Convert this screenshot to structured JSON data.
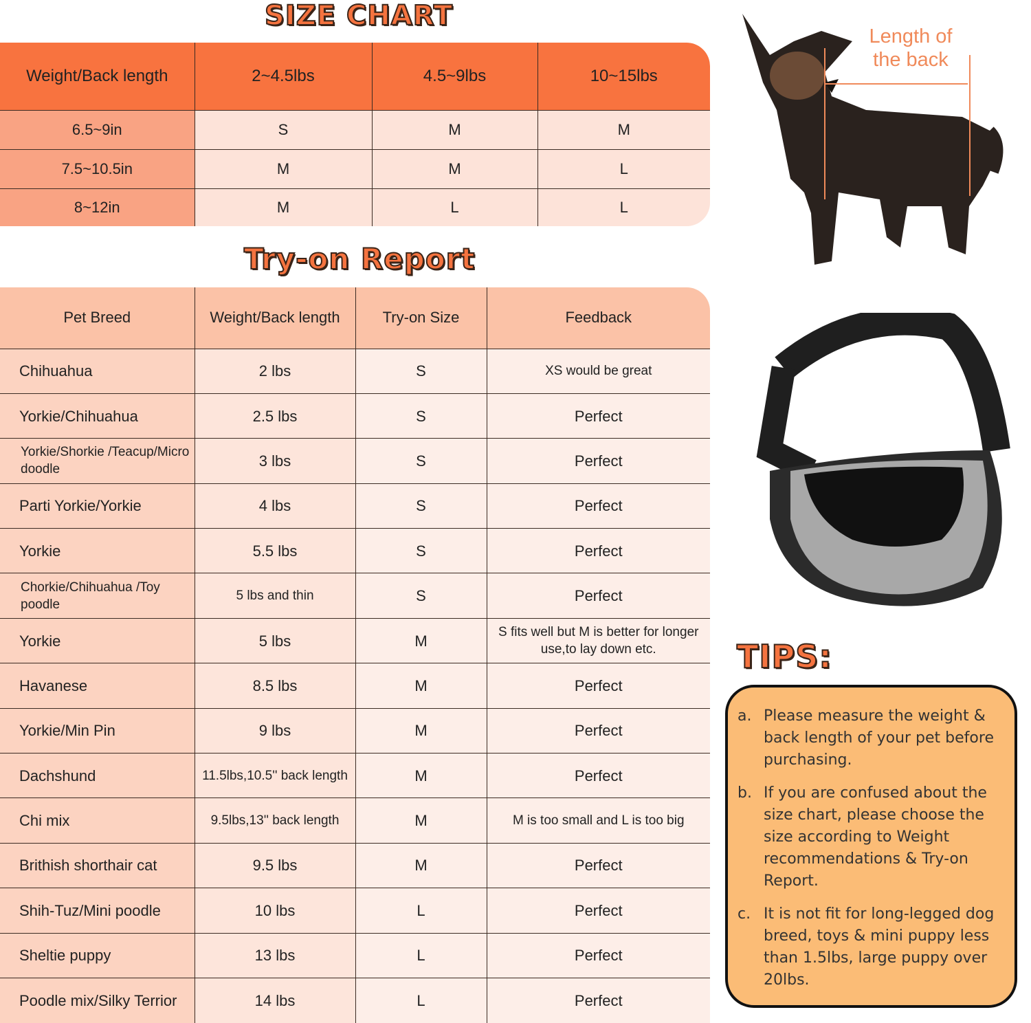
{
  "size_chart": {
    "title": "SIZE CHART",
    "headers": [
      "Weight/Back length",
      "2~4.5lbs",
      "4.5~9lbs",
      "10~15lbs"
    ],
    "rows": [
      [
        "6.5~9in",
        "S",
        "M",
        "M"
      ],
      [
        "7.5~10.5in",
        "M",
        "M",
        "L"
      ],
      [
        "8~12in",
        "M",
        "L",
        "L"
      ]
    ]
  },
  "try_on": {
    "title": "Try-on Report",
    "headers": [
      "Pet Breed",
      "Weight/Back length",
      "Try-on Size",
      "Feedback"
    ],
    "rows": [
      [
        "Chihuahua",
        "2 lbs",
        "S",
        "XS would be great"
      ],
      [
        "Yorkie/Chihuahua",
        "2.5 lbs",
        "S",
        "Perfect"
      ],
      [
        "Yorkie/Shorkie /Teacup/Micro doodle",
        "3 lbs",
        "S",
        "Perfect"
      ],
      [
        "Parti Yorkie/Yorkie",
        "4 lbs",
        "S",
        "Perfect"
      ],
      [
        "Yorkie",
        "5.5 lbs",
        "S",
        "Perfect"
      ],
      [
        "Chorkie/Chihuahua /Toy poodle",
        "5 lbs and thin",
        "S",
        "Perfect"
      ],
      [
        "Yorkie",
        "5 lbs",
        "M",
        "S fits well but M is better for longer use,to lay down etc."
      ],
      [
        "Havanese",
        "8.5 lbs",
        "M",
        "Perfect"
      ],
      [
        "Yorkie/Min Pin",
        "9 lbs",
        "M",
        "Perfect"
      ],
      [
        "Dachshund",
        "11.5lbs,10.5'' back length",
        "M",
        "Perfect"
      ],
      [
        "Chi mix",
        "9.5lbs,13'' back length",
        "M",
        "M is too small and L is too big"
      ],
      [
        "Brithish shorthair cat",
        "9.5 lbs",
        "M",
        "Perfect"
      ],
      [
        "Shih-Tuz/Mini poodle",
        "10 lbs",
        "L",
        "Perfect"
      ],
      [
        "Sheltie puppy",
        "13 lbs",
        "L",
        "Perfect"
      ],
      [
        "Poodle mix/Silky Terrior",
        "14 lbs",
        "L",
        "Perfect"
      ]
    ]
  },
  "dog_image": {
    "label": "Length of the back"
  },
  "tips": {
    "title": "TIPS:",
    "items": [
      {
        "letter": "a.",
        "text": "Please measure the weight & back length of your pet before purchasing."
      },
      {
        "letter": "b.",
        "text": "If you are confused about the size chart, please choose the size according to Weight recommendations & Try-on Report."
      },
      {
        "letter": "c.",
        "text": "It is not fit for long-legged dog breed, toys & mini puppy less than 1.5lbs, large puppy over 20lbs."
      }
    ]
  },
  "colors": {
    "header_orange": "#f8733f",
    "tips_bg": "#fbbc76"
  }
}
